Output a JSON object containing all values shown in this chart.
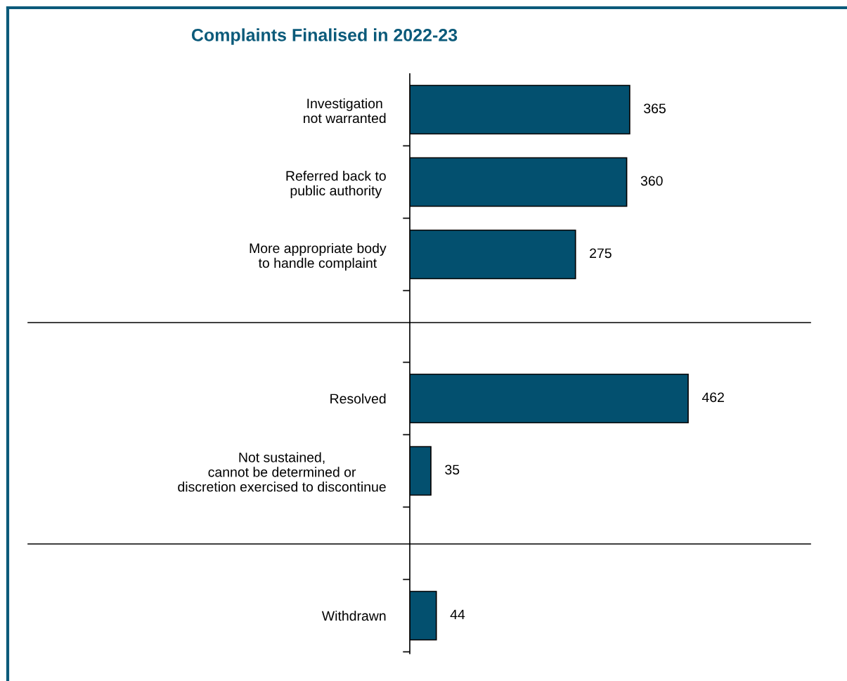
{
  "chart_data": [
    {
      "type": "bar",
      "orientation": "horizontal",
      "title": "Complaints Finalised in 2022-23",
      "categories": [
        "Investigation\nnot warranted",
        "Referred back to\npublic authority",
        "More appropriate body\nto handle complaint"
      ],
      "values": [
        365,
        360,
        275
      ],
      "color": "#03506f",
      "data_labels": true
    },
    {
      "type": "bar",
      "orientation": "horizontal",
      "categories": [
        "Resolved",
        "Not sustained,\ncannot be determined or\ndiscretion exercised to discontinue"
      ],
      "values": [
        462,
        35
      ],
      "color": "#03506f",
      "data_labels": true
    },
    {
      "type": "bar",
      "orientation": "horizontal",
      "categories": [
        "Withdrawn"
      ],
      "values": [
        44
      ],
      "color": "#03506f",
      "data_labels": true
    }
  ]
}
